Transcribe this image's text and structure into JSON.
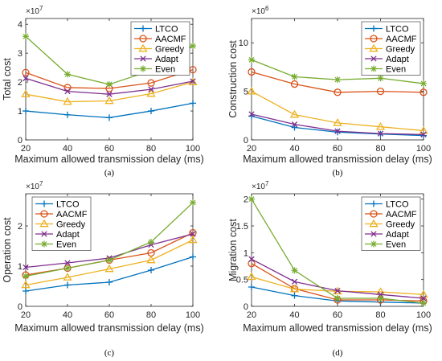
{
  "series_style": [
    {
      "name": "LTCO",
      "color": "#0072BD",
      "marker": "plus"
    },
    {
      "name": "AACMF",
      "color": "#D95319",
      "marker": "circle"
    },
    {
      "name": "Greedy",
      "color": "#EDB120",
      "marker": "triangle"
    },
    {
      "name": "Adapt",
      "color": "#7E2F8E",
      "marker": "x"
    },
    {
      "name": "Even",
      "color": "#77AC30",
      "marker": "asterisk"
    }
  ],
  "chart_data": [
    {
      "type": "line",
      "caption": "(a)",
      "multiplier": {
        "base": "×10",
        "exp": "7"
      },
      "title": "",
      "xlabel": "Maximum allowed transmission delay (ms)",
      "ylabel": "Total cost",
      "x": [
        20,
        40,
        60,
        80,
        100
      ],
      "xlim": [
        20,
        100
      ],
      "ylim": [
        0,
        4.2
      ],
      "yticks": [
        0,
        1,
        2,
        3,
        4
      ],
      "yticklabels": [
        "0",
        "1",
        "2",
        "3",
        "4"
      ],
      "xticklabels": [
        "20",
        "40",
        "60",
        "80",
        "100"
      ],
      "grid": false,
      "legend_position": "top-right",
      "series": [
        {
          "name": "LTCO",
          "values": [
            1.0,
            0.87,
            0.77,
            1.0,
            1.27
          ]
        },
        {
          "name": "AACMF",
          "values": [
            2.33,
            1.81,
            1.78,
            1.97,
            2.43
          ]
        },
        {
          "name": "Greedy",
          "values": [
            1.58,
            1.32,
            1.35,
            1.6,
            2.0
          ]
        },
        {
          "name": "Adapt",
          "values": [
            2.13,
            1.68,
            1.58,
            1.75,
            2.03
          ]
        },
        {
          "name": "Even",
          "values": [
            3.58,
            2.27,
            1.92,
            2.4,
            3.25
          ]
        }
      ]
    },
    {
      "type": "line",
      "caption": "(b)",
      "multiplier": {
        "base": "×10",
        "exp": "6"
      },
      "title": "",
      "xlabel": "Maximum allowed transmission delay (ms)",
      "ylabel": "Construction cost",
      "x": [
        20,
        40,
        60,
        80,
        100
      ],
      "xlim": [
        20,
        100
      ],
      "ylim": [
        0,
        12.5
      ],
      "yticks": [
        0,
        5,
        10
      ],
      "yticklabels": [
        "0",
        "5",
        "10"
      ],
      "xticklabels": [
        "20",
        "40",
        "60",
        "80",
        "100"
      ],
      "grid": false,
      "legend_position": "top-right",
      "series": [
        {
          "name": "LTCO",
          "values": [
            2.45,
            1.28,
            0.8,
            0.6,
            0.45
          ]
        },
        {
          "name": "AACMF",
          "values": [
            7.0,
            5.75,
            4.9,
            5.0,
            4.9
          ]
        },
        {
          "name": "Greedy",
          "values": [
            5.0,
            2.6,
            1.75,
            1.35,
            0.95
          ]
        },
        {
          "name": "Adapt",
          "values": [
            2.65,
            1.6,
            0.9,
            0.65,
            0.55
          ]
        },
        {
          "name": "Even",
          "values": [
            8.25,
            6.5,
            6.2,
            6.35,
            5.8
          ]
        }
      ]
    },
    {
      "type": "line",
      "caption": "(c)",
      "multiplier": {
        "base": "×10",
        "exp": "7"
      },
      "title": "",
      "xlabel": "Maximum allowed transmission delay (ms)",
      "ylabel": "Operation cost",
      "x": [
        20,
        40,
        60,
        80,
        100
      ],
      "xlim": [
        20,
        100
      ],
      "ylim": [
        0,
        2.8
      ],
      "yticks": [
        0,
        1,
        2
      ],
      "yticklabels": [
        "0",
        "1",
        "2"
      ],
      "xticklabels": [
        "20",
        "40",
        "60",
        "80",
        "100"
      ],
      "grid": false,
      "legend_position": "top-left",
      "series": [
        {
          "name": "LTCO",
          "values": [
            0.38,
            0.53,
            0.6,
            0.9,
            1.23
          ]
        },
        {
          "name": "AACMF",
          "values": [
            0.78,
            0.95,
            1.15,
            1.33,
            1.83
          ]
        },
        {
          "name": "Greedy",
          "values": [
            0.53,
            0.72,
            0.93,
            1.15,
            1.65
          ]
        },
        {
          "name": "Adapt",
          "values": [
            0.97,
            1.08,
            1.2,
            1.53,
            1.8
          ]
        },
        {
          "name": "Even",
          "values": [
            0.75,
            0.95,
            1.15,
            1.6,
            2.58
          ]
        }
      ]
    },
    {
      "type": "line",
      "caption": "(d)",
      "multiplier": {
        "base": "×10",
        "exp": "7"
      },
      "title": "",
      "xlabel": "Maximum allowed transmission delay (ms)",
      "ylabel": "Migration cost",
      "x": [
        20,
        40,
        60,
        80,
        100
      ],
      "xlim": [
        20,
        100
      ],
      "ylim": [
        0,
        2.1
      ],
      "yticks": [
        0,
        0.5,
        1,
        1.5,
        2
      ],
      "yticklabels": [
        "0",
        "0.5",
        "1",
        "1.5",
        "2"
      ],
      "xticklabels": [
        "20",
        "40",
        "60",
        "80",
        "100"
      ],
      "grid": false,
      "legend_position": "top-right",
      "series": [
        {
          "name": "LTCO",
          "values": [
            0.36,
            0.2,
            0.1,
            0.08,
            0.06
          ]
        },
        {
          "name": "AACMF",
          "values": [
            0.8,
            0.33,
            0.12,
            0.12,
            0.1
          ]
        },
        {
          "name": "Greedy",
          "values": [
            0.55,
            0.32,
            0.28,
            0.27,
            0.22
          ]
        },
        {
          "name": "Adapt",
          "values": [
            0.88,
            0.46,
            0.29,
            0.22,
            0.15
          ]
        },
        {
          "name": "Even",
          "values": [
            2.0,
            0.67,
            0.15,
            0.15,
            0.06
          ]
        }
      ]
    }
  ]
}
